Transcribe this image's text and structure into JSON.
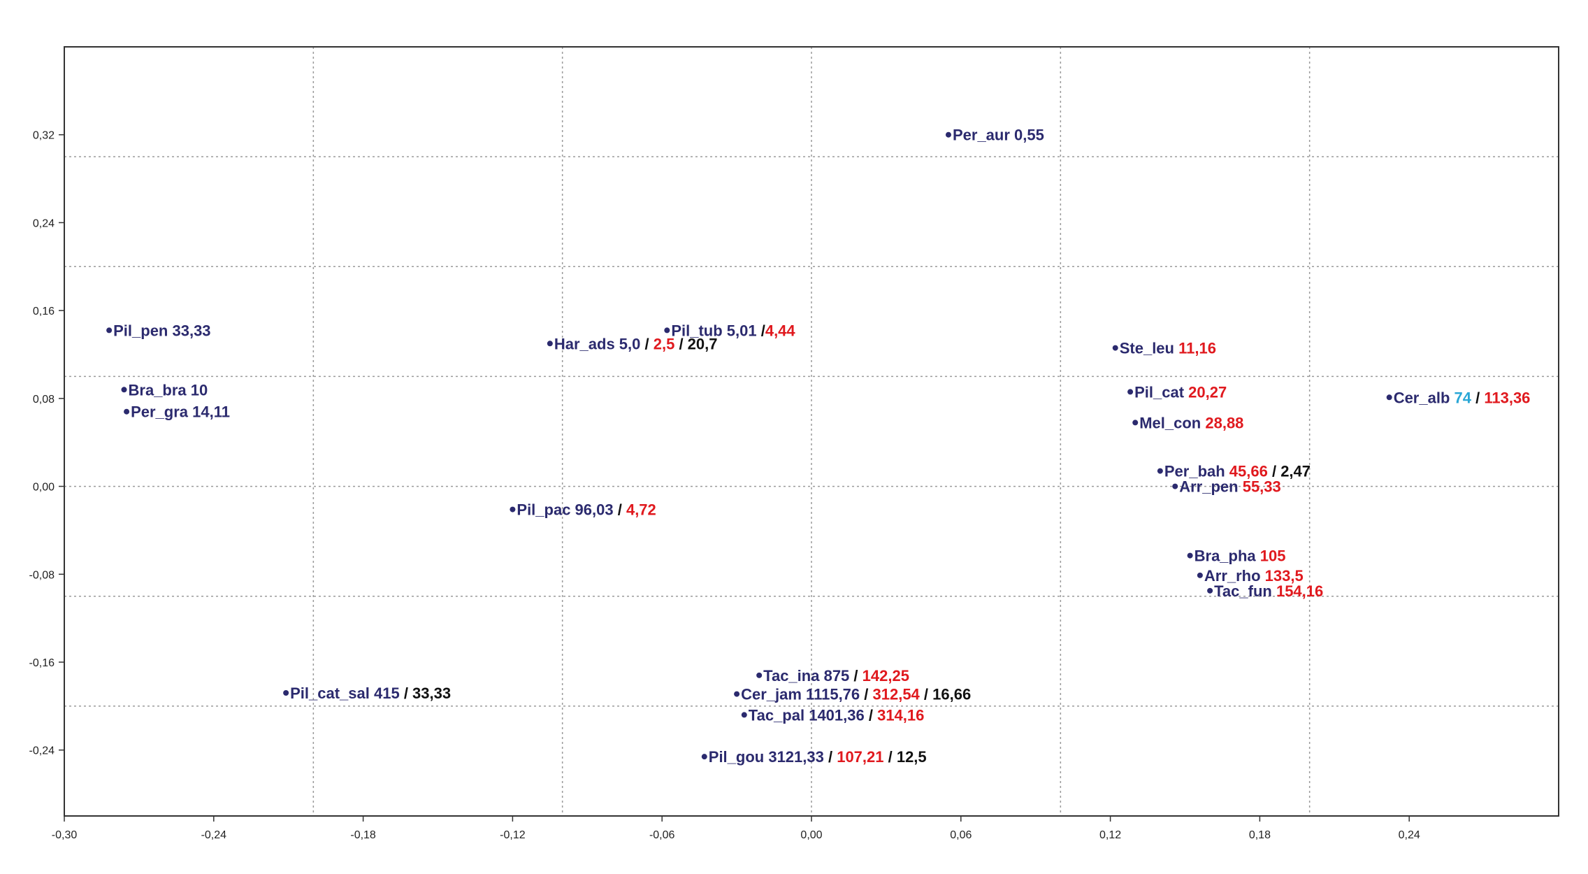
{
  "chart_data": {
    "type": "scatter",
    "title": "",
    "xlabel": "",
    "ylabel": "",
    "xlim": [
      -0.3,
      0.3
    ],
    "ylim": [
      -0.3,
      0.4
    ],
    "grid": true,
    "xticks": [
      -0.3,
      -0.24,
      -0.18,
      -0.12,
      -0.06,
      0.0,
      0.06,
      0.12,
      0.18,
      0.24
    ],
    "xtick_labels": [
      "-0,30",
      "-0,24",
      "-0,18",
      "-0,12",
      "-0,06",
      "0,00",
      "0,06",
      "0,12",
      "0,18",
      "0,24"
    ],
    "yticks": [
      0.32,
      0.24,
      0.16,
      0.08,
      0.0,
      -0.08,
      -0.16,
      -0.24
    ],
    "ytick_labels": [
      "0,32",
      "0,24",
      "0,16",
      "0,08",
      "0,00",
      "-0,08",
      "-0,16",
      "-0,24"
    ],
    "grid_x": [
      -0.2,
      -0.1,
      0.0,
      0.1,
      0.2
    ],
    "grid_y": [
      0.3,
      0.2,
      0.1,
      0.0,
      -0.1,
      -0.2
    ],
    "colors": {
      "point": "#2b2a6e",
      "name": "#2b2a6e",
      "red": "#e0191e",
      "black": "#111111",
      "cyan": "#2aa7d6"
    },
    "points": [
      {
        "x": 0.055,
        "y": 0.32,
        "parts": [
          {
            "text": "Per_aur",
            "color": "name"
          },
          {
            "text": " 0,55",
            "color": "name"
          }
        ]
      },
      {
        "x": -0.282,
        "y": 0.142,
        "parts": [
          {
            "text": "Pil_pen",
            "color": "name"
          },
          {
            "text": " 33,33",
            "color": "name"
          }
        ]
      },
      {
        "x": -0.105,
        "y": 0.13,
        "parts": [
          {
            "text": "Har_ads",
            "color": "name"
          },
          {
            "text": " 5,0",
            "color": "name"
          },
          {
            "text": " / ",
            "color": "black"
          },
          {
            "text": "2,5",
            "color": "red"
          },
          {
            "text": " / 20,7",
            "color": "black"
          }
        ]
      },
      {
        "x": -0.058,
        "y": 0.142,
        "parts": [
          {
            "text": "Pil_tub",
            "color": "name"
          },
          {
            "text": " 5,01",
            "color": "name"
          },
          {
            "text": " /",
            "color": "black"
          },
          {
            "text": "4,44",
            "color": "red"
          }
        ]
      },
      {
        "x": 0.122,
        "y": 0.126,
        "parts": [
          {
            "text": "Ste_leu",
            "color": "name"
          },
          {
            "text": " 11,16",
            "color": "red"
          }
        ]
      },
      {
        "x": -0.276,
        "y": 0.088,
        "parts": [
          {
            "text": "Bra_bra",
            "color": "name"
          },
          {
            "text": " 10",
            "color": "name"
          }
        ]
      },
      {
        "x": -0.275,
        "y": 0.068,
        "parts": [
          {
            "text": "Per_gra",
            "color": "name"
          },
          {
            "text": " 14,11",
            "color": "name"
          }
        ]
      },
      {
        "x": 0.128,
        "y": 0.086,
        "parts": [
          {
            "text": "Pil_cat",
            "color": "name"
          },
          {
            "text": " 20,27",
            "color": "red"
          }
        ]
      },
      {
        "x": 0.232,
        "y": 0.081,
        "parts": [
          {
            "text": "Cer_alb",
            "color": "name"
          },
          {
            "text": " 74",
            "color": "cyan"
          },
          {
            "text": " / ",
            "color": "black"
          },
          {
            "text": "113,36",
            "color": "red"
          }
        ]
      },
      {
        "x": 0.13,
        "y": 0.058,
        "parts": [
          {
            "text": "Mel_con",
            "color": "name"
          },
          {
            "text": " 28,88",
            "color": "red"
          }
        ]
      },
      {
        "x": 0.14,
        "y": 0.014,
        "parts": [
          {
            "text": "Per_bah",
            "color": "name"
          },
          {
            "text": " 45,66",
            "color": "red"
          },
          {
            "text": " / 2,47",
            "color": "black"
          }
        ]
      },
      {
        "x": 0.146,
        "y": 0.0,
        "parts": [
          {
            "text": "Arr_pen",
            "color": "name"
          },
          {
            "text": " 55,33",
            "color": "red"
          }
        ]
      },
      {
        "x": -0.12,
        "y": -0.021,
        "parts": [
          {
            "text": "Pil_pac",
            "color": "name"
          },
          {
            "text": " 96,03",
            "color": "name"
          },
          {
            "text": " / ",
            "color": "black"
          },
          {
            "text": "4,72",
            "color": "red"
          }
        ]
      },
      {
        "x": 0.152,
        "y": -0.063,
        "parts": [
          {
            "text": "Bra_pha",
            "color": "name"
          },
          {
            "text": " 105",
            "color": "red"
          }
        ]
      },
      {
        "x": 0.156,
        "y": -0.081,
        "parts": [
          {
            "text": "Arr_rho",
            "color": "name"
          },
          {
            "text": " 133,5",
            "color": "red"
          }
        ]
      },
      {
        "x": 0.16,
        "y": -0.095,
        "parts": [
          {
            "text": "Tac_fun",
            "color": "name"
          },
          {
            "text": " 154,16",
            "color": "red"
          }
        ]
      },
      {
        "x": -0.021,
        "y": -0.172,
        "parts": [
          {
            "text": "Tac_ina",
            "color": "name"
          },
          {
            "text": " 875",
            "color": "name"
          },
          {
            "text": " / ",
            "color": "black"
          },
          {
            "text": "142,25",
            "color": "red"
          }
        ]
      },
      {
        "x": -0.211,
        "y": -0.188,
        "parts": [
          {
            "text": "Pil_cat_sal",
            "color": "name"
          },
          {
            "text": " 415",
            "color": "name"
          },
          {
            "text": " / 33,33",
            "color": "black"
          }
        ]
      },
      {
        "x": -0.03,
        "y": -0.189,
        "parts": [
          {
            "text": "Cer_jam",
            "color": "name"
          },
          {
            "text": " 1115,76",
            "color": "name"
          },
          {
            "text": " / ",
            "color": "black"
          },
          {
            "text": "312,54",
            "color": "red"
          },
          {
            "text": " / 16,66",
            "color": "black"
          }
        ]
      },
      {
        "x": -0.027,
        "y": -0.208,
        "parts": [
          {
            "text": "Tac_pal",
            "color": "name"
          },
          {
            "text": " 1401,36",
            "color": "name"
          },
          {
            "text": " / ",
            "color": "black"
          },
          {
            "text": "314,16",
            "color": "red"
          }
        ]
      },
      {
        "x": -0.043,
        "y": -0.246,
        "parts": [
          {
            "text": "Pil_gou",
            "color": "name"
          },
          {
            "text": " 3121,33",
            "color": "name"
          },
          {
            "text": " / ",
            "color": "black"
          },
          {
            "text": "107,21",
            "color": "red"
          },
          {
            "text": " / 12,5",
            "color": "black"
          }
        ]
      }
    ]
  }
}
